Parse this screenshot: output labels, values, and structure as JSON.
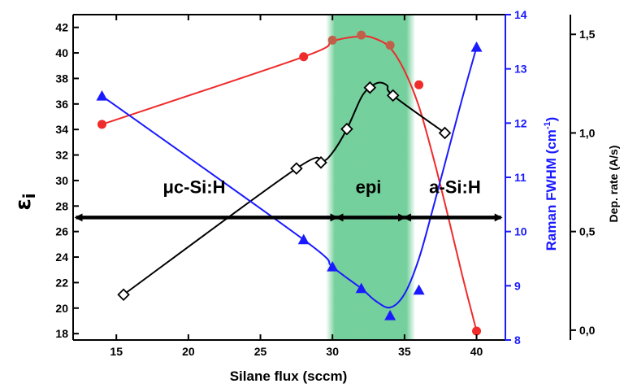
{
  "chart_data": {
    "type": "line",
    "title": "",
    "xlabel": "Silane flux (sccm)",
    "xlim": [
      12,
      42
    ],
    "xticks": [
      "15",
      "20",
      "25",
      "30",
      "35",
      "40"
    ],
    "y_left": {
      "label_main": "ε",
      "label_sub": "i",
      "ylim": [
        17.5,
        43
      ],
      "ticks": [
        "18",
        "20",
        "22",
        "24",
        "26",
        "28",
        "30",
        "32",
        "34",
        "36",
        "38",
        "40",
        "42"
      ]
    },
    "y_right_raman": {
      "label": "Raman FWHM (cm",
      "label_sup": "-1",
      "label_close": ")",
      "ylim": [
        8,
        14
      ],
      "ticks": [
        "8",
        "9",
        "10",
        "11",
        "12",
        "13",
        "14"
      ],
      "color": "#1a1aff"
    },
    "y_right_dep": {
      "label": "Dep. rate (A/s)",
      "ylim": [
        -0.05,
        1.6
      ],
      "ticks": [
        "0,0",
        "0,5",
        "1,0",
        "1,5"
      ]
    },
    "epi_band": {
      "from": 30,
      "to": 35.3,
      "color": "#5cc78a"
    },
    "regions": [
      {
        "label": "μc-Si:H",
        "x_label": 20.4,
        "y_label": 29.0,
        "arrow_from": 12.2,
        "arrow_to": 30.3,
        "y_arrow": 27.1
      },
      {
        "label": "epi",
        "x_label": 32.5,
        "y_label": 29.0,
        "arrow_from": 30.3,
        "arrow_to": 35.0,
        "y_arrow": 27.1
      },
      {
        "label": "a-Si:H",
        "x_label": 38.5,
        "y_label": 29.0,
        "arrow_from": 35.0,
        "arrow_to": 41.7,
        "y_arrow": 27.1
      }
    ],
    "series": [
      {
        "axis": "left",
        "color": "#ef2b2b",
        "marker": "circle",
        "points": [
          [
            14,
            34.4
          ],
          [
            28,
            39.7
          ],
          [
            30,
            41.0
          ],
          [
            32,
            41.4
          ],
          [
            34,
            40.6
          ],
          [
            36,
            37.5
          ],
          [
            40,
            18.2
          ]
        ],
        "curve": [
          [
            14,
            34.4
          ],
          [
            28,
            39.7
          ],
          [
            30,
            40.9
          ],
          [
            32,
            41.3
          ],
          [
            33,
            41.1
          ],
          [
            34,
            40.4
          ],
          [
            35,
            38.6
          ],
          [
            36,
            35.8
          ],
          [
            37,
            31.8
          ],
          [
            38,
            27.3
          ],
          [
            39,
            22.6
          ],
          [
            40,
            18.2
          ]
        ]
      },
      {
        "axis": "dep",
        "color": "#000000",
        "marker": "diamond",
        "points": [
          [
            15.5,
            0.18
          ],
          [
            27.5,
            0.82
          ],
          [
            29.2,
            0.85
          ],
          [
            31,
            1.02
          ],
          [
            32.6,
            1.23
          ],
          [
            34.2,
            1.19
          ],
          [
            37.8,
            1.0
          ]
        ],
        "curve": [
          [
            15.5,
            0.18
          ],
          [
            27.5,
            0.82
          ],
          [
            29.2,
            0.85
          ],
          [
            30,
            0.9
          ],
          [
            31,
            1.02
          ],
          [
            32,
            1.18
          ],
          [
            32.6,
            1.23
          ],
          [
            33.2,
            1.255
          ],
          [
            33.8,
            1.24
          ],
          [
            34.2,
            1.19
          ],
          [
            37.8,
            1.0
          ]
        ]
      },
      {
        "axis": "raman",
        "color": "#1a1aff",
        "marker": "triangle",
        "points": [
          [
            14,
            12.5
          ],
          [
            28,
            9.85
          ],
          [
            30,
            9.35
          ],
          [
            32,
            8.95
          ],
          [
            34,
            8.45
          ],
          [
            36,
            8.92
          ],
          [
            40,
            13.4
          ]
        ],
        "curve": [
          [
            14,
            12.5
          ],
          [
            28,
            9.85
          ],
          [
            30,
            9.35
          ],
          [
            32,
            8.95
          ],
          [
            33,
            8.72
          ],
          [
            34,
            8.6
          ],
          [
            35,
            8.85
          ],
          [
            36,
            9.5
          ],
          [
            37,
            10.45
          ],
          [
            38,
            11.45
          ],
          [
            39,
            12.45
          ],
          [
            40,
            13.4
          ]
        ]
      }
    ]
  }
}
